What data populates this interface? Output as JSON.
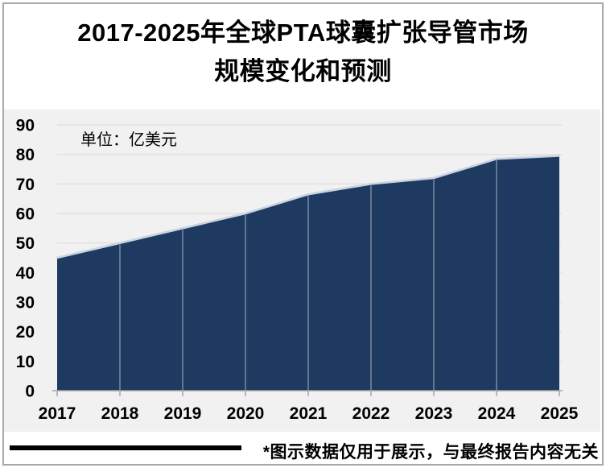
{
  "title": {
    "line1": "2017-2025年全球PTA球囊扩张导管市场",
    "line2": "规模变化和预测",
    "full": "2017-2025年全球PTA球囊扩张导管市场规模变化和预测"
  },
  "chart_data": {
    "type": "area",
    "title": "2017-2025年全球PTA球囊扩张导管市场规模变化和预测",
    "unit_label": "单位：亿美元",
    "categories": [
      "2017",
      "2018",
      "2019",
      "2020",
      "2021",
      "2022",
      "2023",
      "2024",
      "2025"
    ],
    "series": [
      {
        "name": "全球PTA球囊扩张导管市场规模（亿美元）",
        "values": [
          45,
          50,
          55,
          60,
          66.5,
          70,
          72,
          78.5,
          79.5
        ]
      }
    ],
    "xlabel": "",
    "ylabel": "",
    "ylim": [
      0,
      90
    ],
    "yticks": [
      0,
      10,
      20,
      30,
      40,
      50,
      60,
      70,
      80,
      90
    ],
    "grid": "horizontal",
    "legend": "none",
    "colors": {
      "area_fill": "#1F3A60",
      "area_top_edge": "#C9D4E3",
      "year_separator": "#9AA7BB",
      "plot_background": "#F1F1F2",
      "gridline": "#E0E0E0",
      "axis": "#A6A6A6",
      "text": "#000000"
    }
  },
  "footer": {
    "note": "*图示数据仅用于展示，与最终报告内容无关"
  }
}
